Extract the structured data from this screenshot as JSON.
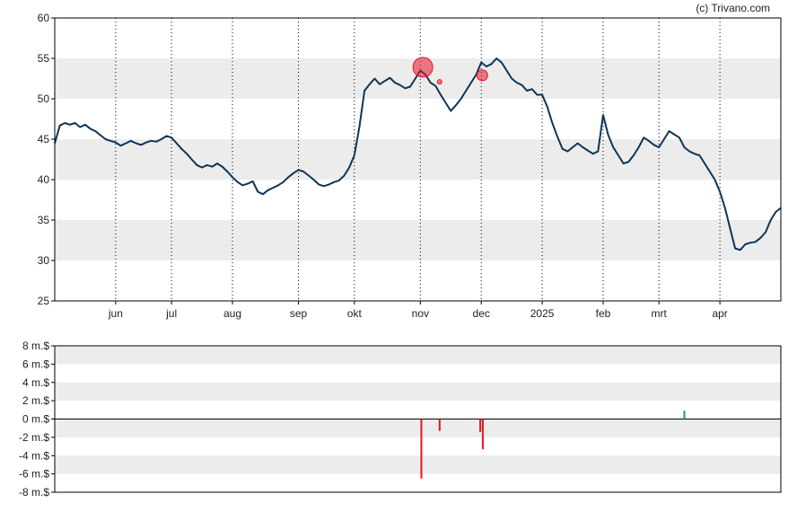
{
  "watermark": "(c) Trivano.com",
  "chart_data": [
    {
      "type": "line",
      "title": "",
      "xlabel": "",
      "ylabel": "",
      "ylim": [
        25,
        60
      ],
      "y_ticks": [
        60,
        55,
        50,
        45,
        40,
        35,
        30,
        25
      ],
      "x_ticks": [
        {
          "label": "jun",
          "t": 12
        },
        {
          "label": "jul",
          "t": 23
        },
        {
          "label": "aug",
          "t": 35
        },
        {
          "label": "sep",
          "t": 48
        },
        {
          "label": "okt",
          "t": 59
        },
        {
          "label": "nov",
          "t": 72
        },
        {
          "label": "dec",
          "t": 84
        },
        {
          "label": "2025",
          "t": 96
        },
        {
          "label": "feb",
          "t": 108
        },
        {
          "label": "mrt",
          "t": 119
        },
        {
          "label": "apr",
          "t": 131
        }
      ],
      "t_range": [
        0,
        143
      ],
      "grid": "alternating horizontal bands, dotted monthly verticals",
      "series": [
        {
          "color": "#0d3557",
          "values": [
            44.5,
            46.7,
            47.0,
            46.8,
            47.0,
            46.5,
            46.8,
            46.3,
            46.0,
            45.5,
            45.0,
            44.8,
            44.6,
            44.2,
            44.5,
            44.8,
            44.5,
            44.3,
            44.6,
            44.8,
            44.7,
            45.0,
            45.4,
            45.2,
            44.5,
            43.8,
            43.2,
            42.5,
            41.8,
            41.5,
            41.8,
            41.6,
            42.0,
            41.6,
            41.0,
            40.3,
            39.7,
            39.3,
            39.5,
            39.8,
            38.5,
            38.2,
            38.7,
            39.0,
            39.3,
            39.7,
            40.3,
            40.8,
            41.2,
            41.0,
            40.5,
            40.0,
            39.4,
            39.2,
            39.4,
            39.7,
            39.9,
            40.5,
            41.5,
            43.0,
            46.5,
            51.0,
            51.8,
            52.5,
            51.8,
            52.2,
            52.6,
            52.0,
            51.7,
            51.3,
            51.5,
            52.5,
            53.5,
            53.0,
            52.0,
            51.6,
            50.5,
            49.5,
            48.5,
            49.2,
            50.0,
            51.0,
            52.0,
            53.0,
            54.5,
            54.0,
            54.3,
            55.0,
            54.5,
            53.5,
            52.5,
            52.0,
            51.7,
            51.0,
            51.2,
            50.5,
            50.5,
            49.0,
            47.0,
            45.3,
            43.8,
            43.5,
            44.0,
            44.5,
            44.0,
            43.6,
            43.2,
            43.5,
            48.0,
            45.5,
            44.0,
            43.0,
            42.0,
            42.2,
            43.0,
            44.0,
            45.2,
            44.8,
            44.3,
            44.0,
            45.0,
            46.0,
            45.6,
            45.2,
            44.0,
            43.5,
            43.2,
            43.0,
            42.0,
            41.0,
            40.0,
            38.5,
            36.5,
            34.0,
            31.5,
            31.3,
            32.0,
            32.2,
            32.3,
            32.8,
            33.5,
            35.0,
            36.0,
            36.5
          ]
        }
      ],
      "markers": [
        {
          "t": 72.5,
          "y": 53.9,
          "size": "large"
        },
        {
          "t": 75.8,
          "y": 52.1,
          "size": "small"
        },
        {
          "t": 84.2,
          "y": 52.9,
          "size": "medium"
        }
      ]
    },
    {
      "type": "bar",
      "title": "",
      "xlabel": "",
      "ylabel": "",
      "ylim": [
        -8,
        8
      ],
      "y_ticks": [
        "8 m.$",
        "6 m.$",
        "4 m.$",
        "2 m.$",
        "0 m.$",
        "-2 m.$",
        "-4 m.$",
        "-6 m.$",
        "-8 m.$"
      ],
      "y_tick_values": [
        8,
        6,
        4,
        2,
        0,
        -2,
        -4,
        -6,
        -8
      ],
      "units": "m.$",
      "bars": [
        {
          "t": 72.2,
          "value": -6.5,
          "color": "#e8141e"
        },
        {
          "t": 75.8,
          "value": -1.3,
          "color": "#e8141e"
        },
        {
          "t": 83.8,
          "value": -1.4,
          "color": "#e8141e"
        },
        {
          "t": 84.3,
          "value": -3.3,
          "color": "#e8141e"
        },
        {
          "t": 124.0,
          "value": 0.9,
          "color": "#2f9a36"
        }
      ]
    }
  ]
}
